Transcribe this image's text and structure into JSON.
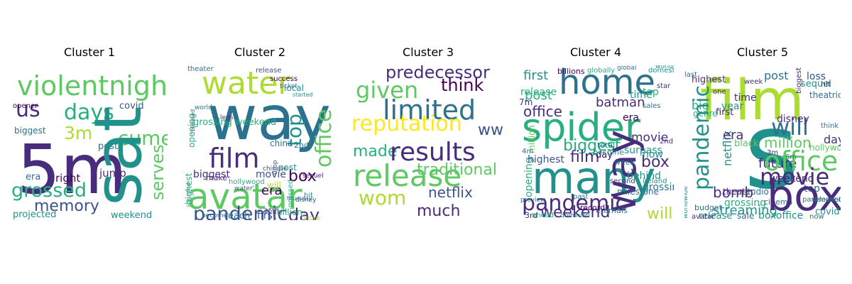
{
  "colors": {
    "purple": "#440154",
    "indigo": "#472d7b",
    "blue": "#3b528b",
    "slate": "#2c728e",
    "teal": "#21918c",
    "green": "#28ae80",
    "lime": "#5ec962",
    "yellow": "#addc30",
    "gold": "#fde725"
  },
  "clusters": [
    {
      "title": "Cluster 1",
      "words": [
        {
          "text": "violentnight",
          "color": "lime"
        },
        {
          "text": "us",
          "color": "indigo"
        },
        {
          "text": "days",
          "color": "green"
        },
        {
          "text": "covid",
          "color": "blue"
        },
        {
          "text": "opener",
          "color": "purple"
        },
        {
          "text": "biggest",
          "color": "slate"
        },
        {
          "text": "3m",
          "color": "yellow"
        },
        {
          "text": "cume",
          "color": "lime"
        },
        {
          "text": "post",
          "color": "slate"
        },
        {
          "text": "5m",
          "color": "indigo"
        },
        {
          "text": "sat",
          "color": "teal"
        },
        {
          "text": "serves",
          "color": "lime"
        },
        {
          "text": "era",
          "color": "slate"
        },
        {
          "text": "jump",
          "color": "indigo"
        },
        {
          "text": "right",
          "color": "purple"
        },
        {
          "text": "grossed",
          "color": "green"
        },
        {
          "text": "memory",
          "color": "blue"
        },
        {
          "text": "projected",
          "color": "teal"
        },
        {
          "text": "weekend",
          "color": "teal"
        }
      ]
    },
    {
      "title": "Cluster 2",
      "words": [
        {
          "text": "water",
          "color": "yellow"
        },
        {
          "text": "way",
          "color": "slate"
        },
        {
          "text": "office",
          "color": "lime"
        },
        {
          "text": "top",
          "color": "teal"
        },
        {
          "text": "film",
          "color": "indigo"
        },
        {
          "text": "grossing weekend",
          "color": "green"
        },
        {
          "text": "box",
          "color": "purple"
        },
        {
          "text": "avatar",
          "color": "lime"
        },
        {
          "text": "biggest",
          "color": "indigo"
        },
        {
          "text": "movie",
          "color": "blue"
        },
        {
          "text": "pandemic",
          "color": "blue"
        },
        {
          "text": "day",
          "color": "indigo"
        },
        {
          "text": "era",
          "color": "purple"
        },
        {
          "text": "opening",
          "color": "green"
        },
        {
          "text": "china",
          "color": "slate"
        },
        {
          "text": "post",
          "color": "teal"
        },
        {
          "text": "reach",
          "color": "slate"
        },
        {
          "text": "first",
          "color": "blue"
        },
        {
          "text": "billion",
          "color": "green"
        },
        {
          "text": "make",
          "color": "indigo"
        },
        {
          "text": "highest",
          "color": "green"
        },
        {
          "text": "will",
          "color": "yellow"
        },
        {
          "text": "theater",
          "color": "slate"
        },
        {
          "text": "release",
          "color": "blue"
        },
        {
          "text": "hollywood",
          "color": "green"
        },
        {
          "text": "chinese",
          "color": "blue"
        },
        {
          "text": "2nd",
          "color": "slate"
        },
        {
          "text": "local",
          "color": "teal"
        },
        {
          "text": "become",
          "color": "slate"
        },
        {
          "text": "sequel",
          "color": "indigo"
        },
        {
          "text": "hit",
          "color": "teal"
        },
        {
          "text": "drop",
          "color": "blue"
        },
        {
          "text": "grossed",
          "color": "green"
        },
        {
          "text": "success",
          "color": "purple"
        },
        {
          "text": "ticket",
          "color": "slate"
        },
        {
          "text": "25th",
          "color": "indigo"
        },
        {
          "text": "disney",
          "color": "blue"
        },
        {
          "text": "thursday",
          "color": "slate"
        },
        {
          "text": "future",
          "color": "yellow"
        },
        {
          "text": "world",
          "color": "slate"
        },
        {
          "text": "adjusted",
          "color": "green"
        },
        {
          "text": "released",
          "color": "slate"
        },
        {
          "text": "water'",
          "color": "blue"
        },
        {
          "text": "started",
          "color": "teal"
        },
        {
          "text": "legs",
          "color": "indigo"
        }
      ]
    },
    {
      "title": "Cluster 3",
      "words": [
        {
          "text": "predecessor",
          "color": "indigo"
        },
        {
          "text": "given",
          "color": "lime"
        },
        {
          "text": "think",
          "color": "purple"
        },
        {
          "text": "limited",
          "color": "slate"
        },
        {
          "text": "reputation",
          "color": "gold"
        },
        {
          "text": "ww",
          "color": "blue"
        },
        {
          "text": "made",
          "color": "green"
        },
        {
          "text": "results",
          "color": "indigo"
        },
        {
          "text": "traditional",
          "color": "lime"
        },
        {
          "text": "release",
          "color": "lime"
        },
        {
          "text": "wom",
          "color": "yellow"
        },
        {
          "text": "netflix",
          "color": "blue"
        },
        {
          "text": "much",
          "color": "indigo"
        }
      ]
    },
    {
      "title": "Cluster 4",
      "words": [
        {
          "text": "home",
          "color": "slate"
        },
        {
          "text": "first",
          "color": "teal"
        },
        {
          "text": "post",
          "color": "green"
        },
        {
          "text": "release",
          "color": "green"
        },
        {
          "text": "office",
          "color": "indigo"
        },
        {
          "text": "batman",
          "color": "indigo"
        },
        {
          "text": "time",
          "color": "teal"
        },
        {
          "text": "top",
          "color": "green"
        },
        {
          "text": "spider",
          "color": "green"
        },
        {
          "text": "era",
          "color": "purple"
        },
        {
          "text": "biggest",
          "color": "green"
        },
        {
          "text": "movie",
          "color": "indigo"
        },
        {
          "text": "opening",
          "color": "green"
        },
        {
          "text": "highest",
          "color": "blue"
        },
        {
          "text": "film",
          "color": "indigo"
        },
        {
          "text": "many",
          "color": "teal"
        },
        {
          "text": "way",
          "color": "indigo"
        },
        {
          "text": "box",
          "color": "indigo"
        },
        {
          "text": "pandemic",
          "color": "indigo"
        },
        {
          "text": "weekend",
          "color": "indigo"
        },
        {
          "text": "will",
          "color": "yellow"
        },
        {
          "text": "day",
          "color": "purple"
        },
        {
          "text": "total",
          "color": "slate"
        },
        {
          "text": "surpass",
          "color": "teal"
        },
        {
          "text": "now",
          "color": "teal"
        },
        {
          "text": "million",
          "color": "lime"
        },
        {
          "text": "grossing",
          "color": "slate"
        },
        {
          "text": "behind",
          "color": "teal"
        },
        {
          "text": "milestone",
          "color": "slate"
        },
        {
          "text": "eternals",
          "color": "slate"
        },
        {
          "text": "billions",
          "color": "purple"
        },
        {
          "text": "globally",
          "color": "green"
        },
        {
          "text": "domestic",
          "color": "teal"
        },
        {
          "text": "sales",
          "color": "slate"
        },
        {
          "text": "become",
          "color": "teal"
        },
        {
          "text": "record",
          "color": "purple"
        },
        {
          "text": "preview",
          "color": "slate"
        },
        {
          "text": "ahead",
          "color": "green"
        },
        {
          "text": "dominion",
          "color": "slate"
        },
        {
          "text": "3rd",
          "color": "indigo"
        },
        {
          "text": "ireland",
          "color": "teal"
        },
        {
          "text": "second",
          "color": "indigo"
        },
        {
          "text": "past",
          "color": "slate"
        },
        {
          "text": "7m",
          "color": "indigo"
        },
        {
          "text": "4m",
          "color": "slate"
        },
        {
          "text": "2nd",
          "color": "indigo"
        },
        {
          "text": "week",
          "color": "slate"
        },
        {
          "text": "worldwide",
          "color": "teal"
        },
        {
          "text": "global",
          "color": "slate"
        },
        {
          "text": "star",
          "color": "indigo"
        }
      ]
    },
    {
      "title": "Cluster 5",
      "words": [
        {
          "text": "film",
          "color": "yellow"
        },
        {
          "text": "post",
          "color": "slate"
        },
        {
          "text": "loss",
          "color": "blue"
        },
        {
          "text": "highest",
          "color": "indigo"
        },
        {
          "text": "sequel",
          "color": "teal"
        },
        {
          "text": "hit",
          "color": "indigo"
        },
        {
          "text": "big",
          "color": "green"
        },
        {
          "text": "last",
          "color": "slate"
        },
        {
          "text": "one",
          "color": "indigo"
        },
        {
          "text": "time",
          "color": "indigo"
        },
        {
          "text": "year",
          "color": "teal"
        },
        {
          "text": "first",
          "color": "indigo"
        },
        {
          "text": "genre",
          "color": "green"
        },
        {
          "text": "s",
          "color": "teal"
        },
        {
          "text": "will",
          "color": "slate"
        },
        {
          "text": "hollywood",
          "color": "lime"
        },
        {
          "text": "netflix",
          "color": "teal"
        },
        {
          "text": "era",
          "color": "indigo"
        },
        {
          "text": "million",
          "color": "lime"
        },
        {
          "text": "day",
          "color": "indigo"
        },
        {
          "text": "future",
          "color": "indigo"
        },
        {
          "text": "office",
          "color": "lime"
        },
        {
          "text": "pandemic",
          "color": "teal"
        },
        {
          "text": "weekend",
          "color": "indigo"
        },
        {
          "text": "movie",
          "color": "indigo"
        },
        {
          "text": "bomb",
          "color": "indigo"
        },
        {
          "text": "top",
          "color": "slate"
        },
        {
          "text": "grossing",
          "color": "green"
        },
        {
          "text": "cinema",
          "color": "slate"
        },
        {
          "text": "studio",
          "color": "slate"
        },
        {
          "text": "streaming",
          "color": "teal"
        },
        {
          "text": "theater",
          "color": "indigo"
        },
        {
          "text": "box",
          "color": "indigo"
        },
        {
          "text": "release",
          "color": "teal"
        },
        {
          "text": "sale",
          "color": "slate"
        },
        {
          "text": "boxoffice",
          "color": "teal"
        },
        {
          "text": "now",
          "color": "slate"
        },
        {
          "text": "covid",
          "color": "teal"
        },
        {
          "text": "black",
          "color": "lime"
        },
        {
          "text": "disney",
          "color": "indigo"
        },
        {
          "text": "theatrical",
          "color": "slate"
        },
        {
          "text": "biggest",
          "color": "indigo"
        },
        {
          "text": "3m",
          "color": "indigo"
        },
        {
          "text": "6m",
          "color": "slate"
        },
        {
          "text": "paramount",
          "color": "slate"
        },
        {
          "text": "budget",
          "color": "slate"
        },
        {
          "text": "worldwide",
          "color": "teal"
        },
        {
          "text": "avatar",
          "color": "indigo"
        },
        {
          "text": "released",
          "color": "slate"
        },
        {
          "text": "think",
          "color": "slate"
        },
        {
          "text": "week",
          "color": "indigo"
        }
      ]
    }
  ]
}
